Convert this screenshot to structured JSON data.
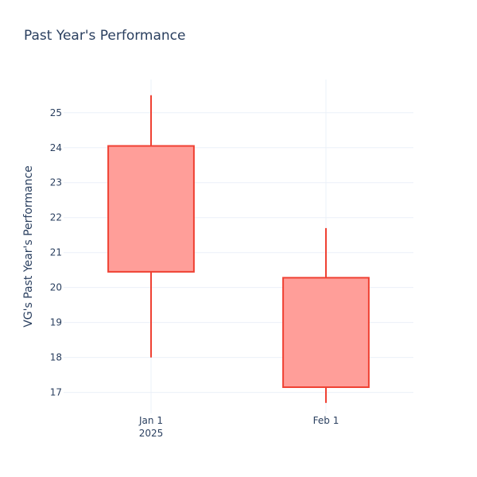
{
  "chart_data": {
    "type": "candlestick",
    "title": "Past Year's Performance",
    "xlabel": "",
    "ylabel": "VG's Past Year's Performance",
    "categories": [
      "Jan 1",
      "Feb 1"
    ],
    "x_tick_sublabels": [
      "2025",
      ""
    ],
    "yticks": [
      17,
      18,
      19,
      20,
      21,
      22,
      23,
      24,
      25
    ],
    "ylim": [
      16.4,
      25.95
    ],
    "grid": true,
    "legend": "none",
    "series": [
      {
        "ohlc": [
          {
            "x": "Jan 1",
            "open": 24.05,
            "high": 25.5,
            "low": 18.0,
            "close": 20.45
          },
          {
            "x": "Feb 1",
            "open": 20.28,
            "high": 21.7,
            "low": 16.7,
            "close": 17.15
          }
        ]
      }
    ],
    "colors": {
      "decreasing_line": "#ef4133",
      "decreasing_fill": "#ff9e99",
      "text": "#2a3f5f",
      "grid": "#ebf0f8"
    }
  }
}
